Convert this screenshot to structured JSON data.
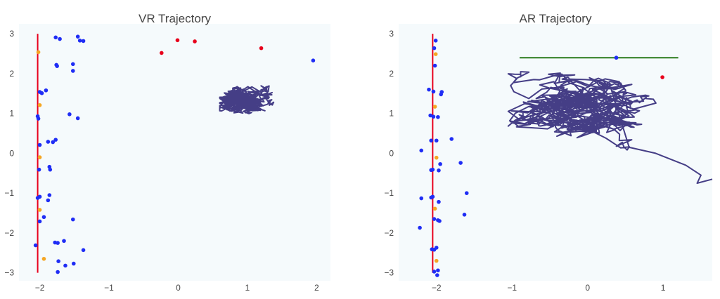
{
  "chart_data": [
    {
      "type": "scatter",
      "title": "VR Trajectory",
      "xlabel": "",
      "ylabel": "",
      "xlim": [
        -2.3,
        2.2
      ],
      "ylim": [
        -3.2,
        3.25
      ],
      "xticks": [
        -2,
        -1,
        0,
        1,
        2
      ],
      "xtick_labels": [
        "−2",
        "−1",
        "0",
        "1",
        "2"
      ],
      "yticks": [
        3,
        2,
        1,
        0,
        -1,
        -2,
        -3
      ],
      "ytick_labels": [
        "3",
        "2",
        "1",
        "0",
        "−1",
        "−2",
        "−3"
      ],
      "grid": false,
      "background": "#f5fafc",
      "colors": {
        "blue": "#1f2df5",
        "orange": "#f5a623",
        "red": "#e8001c",
        "line": "#e8001c",
        "trajectory": "#453e86"
      },
      "red_line": {
        "x": [
          -2.03,
          -2.03
        ],
        "y": [
          3.0,
          -3.0
        ]
      },
      "blue_points": [
        {
          "x": -1.77,
          "y": 2.91
        },
        {
          "x": -1.71,
          "y": 2.87
        },
        {
          "x": -1.45,
          "y": 2.93
        },
        {
          "x": -1.42,
          "y": 2.83
        },
        {
          "x": -1.37,
          "y": 2.82
        },
        {
          "x": -1.52,
          "y": 2.24
        },
        {
          "x": -1.76,
          "y": 2.22
        },
        {
          "x": -1.75,
          "y": 2.19
        },
        {
          "x": -1.52,
          "y": 2.07
        },
        {
          "x": -1.91,
          "y": 1.58
        },
        {
          "x": -2.0,
          "y": 1.54
        },
        {
          "x": -1.97,
          "y": 1.51
        },
        {
          "x": -1.57,
          "y": 0.98
        },
        {
          "x": -1.45,
          "y": 0.88
        },
        {
          "x": -2.03,
          "y": 0.93
        },
        {
          "x": -2.02,
          "y": 0.87
        },
        {
          "x": -1.77,
          "y": 0.34
        },
        {
          "x": -1.81,
          "y": 0.28
        },
        {
          "x": -1.88,
          "y": 0.29
        },
        {
          "x": -2.0,
          "y": 0.21
        },
        {
          "x": -1.86,
          "y": -0.34
        },
        {
          "x": -1.85,
          "y": -0.41
        },
        {
          "x": -2.01,
          "y": -0.41
        },
        {
          "x": -1.86,
          "y": -1.05
        },
        {
          "x": -1.88,
          "y": -1.18
        },
        {
          "x": -2.0,
          "y": -1.09
        },
        {
          "x": -2.03,
          "y": -1.12
        },
        {
          "x": -1.94,
          "y": -1.6
        },
        {
          "x": -1.52,
          "y": -1.66
        },
        {
          "x": -2.0,
          "y": -1.71
        },
        {
          "x": -1.65,
          "y": -2.2
        },
        {
          "x": -1.78,
          "y": -2.24
        },
        {
          "x": -1.74,
          "y": -2.25
        },
        {
          "x": -2.06,
          "y": -2.31
        },
        {
          "x": -1.37,
          "y": -2.43
        },
        {
          "x": -1.73,
          "y": -2.71
        },
        {
          "x": -1.63,
          "y": -2.82
        },
        {
          "x": -1.51,
          "y": -2.77
        },
        {
          "x": -1.74,
          "y": -2.98
        },
        {
          "x": 1.95,
          "y": 2.33
        }
      ],
      "orange_points": [
        {
          "x": -2.02,
          "y": 2.54
        },
        {
          "x": -2.0,
          "y": 1.21
        },
        {
          "x": -2.0,
          "y": -0.1
        },
        {
          "x": -2.0,
          "y": -1.42
        },
        {
          "x": -1.94,
          "y": -2.65
        }
      ],
      "red_points": [
        {
          "x": -0.24,
          "y": 2.52
        },
        {
          "x": -0.01,
          "y": 2.84
        },
        {
          "x": 0.24,
          "y": 2.81
        },
        {
          "x": 1.2,
          "y": 2.64
        }
      ],
      "trajectory": {
        "center": [
          0.98,
          1.36
        ],
        "spread": [
          0.22,
          0.2
        ],
        "bounds": {
          "xmin": 0.6,
          "xmax": 1.45,
          "ymin": 0.9,
          "ymax": 1.85
        },
        "steps": 900,
        "seed": 7
      }
    },
    {
      "type": "scatter",
      "title": "AR Trajectory",
      "xlabel": "",
      "ylabel": "",
      "xlim": [
        -2.5,
        1.65
      ],
      "ylim": [
        -3.2,
        3.25
      ],
      "xticks": [
        -2,
        -1,
        0,
        1
      ],
      "xtick_labels": [
        "−2",
        "−1",
        "0",
        "1"
      ],
      "yticks": [
        3,
        2,
        1,
        0,
        -1,
        -2,
        -3
      ],
      "ytick_labels": [
        "3",
        "2",
        "1",
        "0",
        "−1",
        "−2",
        "−3"
      ],
      "grid": false,
      "background": "#f5fafc",
      "colors": {
        "blue": "#1f2df5",
        "orange": "#f5a623",
        "red": "#e8001c",
        "line": "#e8001c",
        "green": "#2a7a1a",
        "trajectory": "#453e86"
      },
      "red_line": {
        "x": [
          -2.05,
          -2.05
        ],
        "y": [
          3.0,
          -3.0
        ]
      },
      "green_line": {
        "x": [
          -0.9,
          1.2
        ],
        "y": [
          2.4,
          2.4
        ]
      },
      "blue_points": [
        {
          "x": -2.01,
          "y": 2.83
        },
        {
          "x": -2.03,
          "y": 2.64
        },
        {
          "x": -2.02,
          "y": 2.2
        },
        {
          "x": -2.1,
          "y": 1.6
        },
        {
          "x": -2.04,
          "y": 1.55
        },
        {
          "x": -1.93,
          "y": 1.54
        },
        {
          "x": -1.94,
          "y": 1.48
        },
        {
          "x": -2.08,
          "y": 0.95
        },
        {
          "x": -2.04,
          "y": 0.92
        },
        {
          "x": -1.98,
          "y": 0.91
        },
        {
          "x": -1.8,
          "y": 0.36
        },
        {
          "x": -2.07,
          "y": 0.32
        },
        {
          "x": -2.0,
          "y": 0.32
        },
        {
          "x": -2.2,
          "y": 0.07
        },
        {
          "x": -1.68,
          "y": -0.24
        },
        {
          "x": -1.95,
          "y": -0.27
        },
        {
          "x": -2.05,
          "y": -0.41
        },
        {
          "x": -2.07,
          "y": -0.42
        },
        {
          "x": -1.97,
          "y": -0.43
        },
        {
          "x": -1.6,
          "y": -1.0
        },
        {
          "x": -2.05,
          "y": -1.09
        },
        {
          "x": -2.07,
          "y": -1.11
        },
        {
          "x": -2.2,
          "y": -1.13
        },
        {
          "x": -1.97,
          "y": -1.22
        },
        {
          "x": -1.63,
          "y": -1.54
        },
        {
          "x": -2.03,
          "y": -1.65
        },
        {
          "x": -1.98,
          "y": -1.68
        },
        {
          "x": -1.96,
          "y": -1.7
        },
        {
          "x": -2.22,
          "y": -1.87
        },
        {
          "x": -2.06,
          "y": -2.41
        },
        {
          "x": -2.03,
          "y": -2.42
        },
        {
          "x": -2.0,
          "y": -2.37
        },
        {
          "x": -2.03,
          "y": -2.97
        },
        {
          "x": -1.98,
          "y": -2.94
        },
        {
          "x": -1.99,
          "y": -3.06
        },
        {
          "x": 0.38,
          "y": 2.4
        }
      ],
      "orange_points": [
        {
          "x": -2.01,
          "y": 2.49
        },
        {
          "x": -2.02,
          "y": 1.17
        },
        {
          "x": -2.0,
          "y": -0.11
        },
        {
          "x": -2.02,
          "y": -1.39
        },
        {
          "x": -2.0,
          "y": -2.7
        }
      ],
      "red_points": [
        {
          "x": 0.99,
          "y": 1.91
        }
      ],
      "trajectory": {
        "center": [
          -0.05,
          1.1
        ],
        "spread": [
          0.55,
          0.45
        ],
        "bounds": {
          "xmin": -1.05,
          "xmax": 1.65,
          "ymin": -0.6,
          "ymax": 2.05
        },
        "steps": 700,
        "seed": 21,
        "tail": [
          [
            0.55,
            0.15
          ],
          [
            0.9,
            0.0
          ],
          [
            1.3,
            -0.3
          ],
          [
            1.5,
            -0.55
          ],
          [
            1.45,
            -0.75
          ],
          [
            1.65,
            -0.65
          ]
        ]
      }
    }
  ]
}
